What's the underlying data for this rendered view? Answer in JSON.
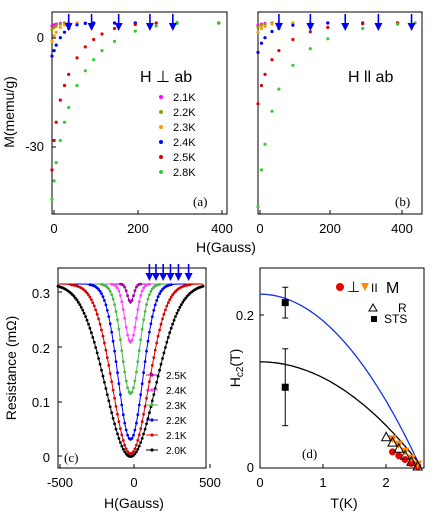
{
  "chart_data": [
    {
      "panel": "(a)",
      "type": "scatter",
      "field_label": "H ⊥ ab",
      "xlabel": "",
      "ylabel": "M(memu/g)",
      "xlim": [
        0,
        420
      ],
      "ylim": [
        -52,
        3
      ],
      "xticks": [
        "0",
        "200",
        "400"
      ],
      "yticks": [
        {
          "value": 0,
          "label": "0"
        },
        {
          "value": -30,
          "label": "-30"
        }
      ],
      "legend_position": "center-right",
      "series": [
        {
          "name": "2.1K",
          "color": "#ff00ff",
          "x": [
            0,
            5,
            10,
            20,
            30,
            40,
            60,
            80,
            100,
            150,
            200,
            300,
            400
          ],
          "y": [
            -0.8,
            -0.5,
            -0.3,
            -0.1,
            0,
            0,
            0,
            0,
            0,
            0,
            0,
            0,
            0
          ]
        },
        {
          "name": "2.2K",
          "color": "#999900",
          "x": [
            0,
            5,
            10,
            20,
            30,
            40,
            60,
            80,
            100,
            150,
            200,
            300,
            400
          ],
          "y": [
            -1.8,
            -1.2,
            -0.8,
            -0.3,
            -0.1,
            0,
            0,
            0,
            0,
            0,
            0,
            0,
            0
          ]
        },
        {
          "name": "2.3K",
          "color": "#ff9900",
          "x": [
            0,
            5,
            10,
            20,
            30,
            40,
            60,
            80,
            100,
            150,
            200,
            300,
            400
          ],
          "y": [
            -5,
            -3.5,
            -2.5,
            -1.2,
            -0.5,
            -0.2,
            0,
            0,
            0,
            0,
            0,
            0,
            0
          ]
        },
        {
          "name": "2.4K",
          "color": "#0000ff",
          "x": [
            0,
            5,
            10,
            20,
            30,
            40,
            60,
            80,
            100,
            150,
            200,
            300,
            400
          ],
          "y": [
            -9,
            -7.5,
            -6,
            -4,
            -2.5,
            -1.5,
            -0.5,
            -0.1,
            0,
            0,
            0,
            0,
            0
          ]
        },
        {
          "name": "2.5K",
          "color": "#dd0000",
          "x": [
            0,
            5,
            10,
            20,
            30,
            40,
            60,
            80,
            100,
            120,
            150,
            200,
            250,
            300,
            400
          ],
          "y": [
            -40,
            -32,
            -27,
            -21,
            -17,
            -14,
            -9.5,
            -6.5,
            -4.5,
            -3,
            -1.5,
            -0.4,
            0,
            0,
            0
          ]
        },
        {
          "name": "2.8K",
          "color": "#33cc33",
          "x": [
            0,
            5,
            10,
            20,
            30,
            40,
            60,
            80,
            100,
            120,
            150,
            200,
            250,
            300,
            400
          ],
          "y": [
            -48,
            -43,
            -38,
            -32,
            -27,
            -23,
            -17,
            -13,
            -10,
            -7.5,
            -5,
            -2.2,
            -0.8,
            -0.1,
            0
          ]
        }
      ],
      "arrows_x": [
        40,
        95,
        160,
        235,
        290
      ]
    },
    {
      "panel": "(b)",
      "type": "scatter",
      "field_label": "H ll ab",
      "xlabel": "",
      "ylabel": "",
      "xlim": [
        0,
        470
      ],
      "ylim": [
        -52,
        3
      ],
      "xticks": [
        "0",
        "200",
        "400"
      ],
      "series": [
        {
          "name": "2.1K",
          "color": "#ff00ff",
          "x": [
            0,
            10,
            20,
            40,
            60,
            100,
            200,
            400
          ],
          "y": [
            -0.6,
            -0.3,
            -0.1,
            0,
            0,
            0,
            0,
            0
          ]
        },
        {
          "name": "2.2K",
          "color": "#999900",
          "x": [
            0,
            10,
            20,
            40,
            60,
            100,
            200,
            400
          ],
          "y": [
            -1.2,
            -0.6,
            -0.3,
            -0.1,
            0,
            0,
            0,
            0
          ]
        },
        {
          "name": "2.3K",
          "color": "#ff9900",
          "x": [
            0,
            10,
            20,
            40,
            60,
            100,
            200,
            400
          ],
          "y": [
            -2.5,
            -1.5,
            -0.9,
            -0.3,
            -0.1,
            0,
            0,
            0
          ]
        },
        {
          "name": "2.4K",
          "color": "#0000ff",
          "x": [
            0,
            10,
            20,
            40,
            60,
            100,
            150,
            200,
            300,
            400
          ],
          "y": [
            -8,
            -5.5,
            -4,
            -2.3,
            -1.4,
            -0.6,
            -0.2,
            0,
            0,
            0
          ]
        },
        {
          "name": "2.5K",
          "color": "#dd0000",
          "x": [
            0,
            10,
            20,
            40,
            60,
            100,
            150,
            200,
            300,
            400
          ],
          "y": [
            -22,
            -17,
            -14,
            -10,
            -7.5,
            -4.5,
            -2.4,
            -1.2,
            -0.2,
            0
          ]
        },
        {
          "name": "2.8K",
          "color": "#33cc33",
          "x": [
            0,
            10,
            20,
            40,
            60,
            100,
            150,
            200,
            300,
            400,
            450
          ],
          "y": [
            -50,
            -40,
            -33,
            -24,
            -18,
            -11.5,
            -7,
            -4.3,
            -1.5,
            -0.3,
            0
          ]
        }
      ],
      "arrows_x": [
        60,
        150,
        250,
        345,
        440
      ]
    },
    {
      "panel": "(c)",
      "type": "line",
      "xlabel": "H(Gauss)",
      "ylabel": "Resistance (mΩ)",
      "xlim": [
        -500,
        520
      ],
      "ylim": [
        -0.02,
        0.33
      ],
      "xticks": [
        "-500",
        "0",
        "500"
      ],
      "yticks": [
        "0",
        "0.1",
        "0.2",
        "0.3"
      ],
      "legend_position": "lower-right",
      "series": [
        {
          "name": "2.5K",
          "color": "#aa00aa",
          "center": 0,
          "halfwidth": 30,
          "min": 0.27,
          "max": 0.302
        },
        {
          "name": "2.4K",
          "color": "#ff44ff",
          "center": 0,
          "halfwidth": 55,
          "min": 0.2,
          "max": 0.302
        },
        {
          "name": "2.3K",
          "color": "#44bb44",
          "center": 0,
          "halfwidth": 85,
          "min": 0.11,
          "max": 0.302
        },
        {
          "name": "2.2K",
          "color": "#0000ff",
          "center": 0,
          "halfwidth": 120,
          "min": 0.03,
          "max": 0.302
        },
        {
          "name": "2.1K",
          "color": "#dd0000",
          "center": 0,
          "halfwidth": 175,
          "min": 0.005,
          "max": 0.302
        },
        {
          "name": "2.0K",
          "color": "#000000",
          "center": 0,
          "halfwidth": 240,
          "min": 0.0,
          "max": 0.302
        }
      ],
      "arrows_x": [
        130,
        175,
        225,
        275,
        330,
        400
      ]
    },
    {
      "panel": "(d)",
      "type": "scatter",
      "xlabel": "T(K)",
      "ylabel": "H_c2(T)",
      "xlim": [
        0,
        2.6
      ],
      "ylim": [
        0,
        0.26
      ],
      "xticks": [
        "0",
        "1",
        "2"
      ],
      "yticks": [
        "0",
        "0.2"
      ],
      "legend_position": "top-right",
      "legend": [
        {
          "label": "⊥",
          "marker": "circle",
          "color": "#ee0000"
        },
        {
          "label": "II",
          "marker": "triangle-down",
          "color": "#ff8800"
        },
        {
          "label": "M",
          "marker": "none",
          "color": "#000000"
        },
        {
          "label": "R",
          "marker": "triangle-open",
          "color": "#000000"
        },
        {
          "label": "STS",
          "marker": "square",
          "color": "#000000"
        }
      ],
      "series": [
        {
          "name": "⊥ M",
          "marker": "circle",
          "color": "#ee0000",
          "x": [
            2.1,
            2.2,
            2.3,
            2.4,
            2.5
          ],
          "y": [
            0.021,
            0.016,
            0.011,
            0.006,
            0.002
          ]
        },
        {
          "name": "II M",
          "marker": "triangle-down",
          "color": "#ff8800",
          "x": [
            2.1,
            2.2,
            2.3,
            2.4,
            2.5
          ],
          "y": [
            0.038,
            0.031,
            0.022,
            0.013,
            0.005
          ]
        },
        {
          "name": "R",
          "marker": "triangle-open",
          "color": "#000000",
          "x": [
            2.0,
            2.1,
            2.2,
            2.3,
            2.4,
            2.5
          ],
          "y": [
            0.04,
            0.033,
            0.025,
            0.016,
            0.008,
            0.002
          ]
        },
        {
          "name": "STS",
          "marker": "square",
          "color": "#000000",
          "x": [
            0.4,
            0.4
          ],
          "y": [
            0.215,
            0.105
          ],
          "err": [
            0.02,
            0.05
          ]
        }
      ],
      "fits": [
        {
          "color": "#1133ee",
          "h0": 0.226,
          "tc": 2.55
        },
        {
          "color": "#000000",
          "h0": 0.138,
          "tc": 2.58
        }
      ]
    }
  ],
  "labels": {
    "a_panel": "(a)",
    "b_panel": "(b)",
    "c_panel": "(c)",
    "d_panel": "(d)",
    "a_field": "H ⊥ ab",
    "b_field": "H ll ab",
    "a_ylabel": "M(memu/g)",
    "ab_xlabel": "H(Gauss)",
    "c_ylabel": "Resistance (mΩ)",
    "c_xlabel": "H(Gauss)",
    "d_ylabel": "H",
    "d_ylabel_sub": "c2",
    "d_ylabel_tail": "(T)",
    "d_xlabel": "T(K)",
    "d_leg_perp": "⊥",
    "d_leg_par": "II",
    "d_leg_M": "M",
    "d_leg_R": "R",
    "d_leg_STS": "STS"
  }
}
